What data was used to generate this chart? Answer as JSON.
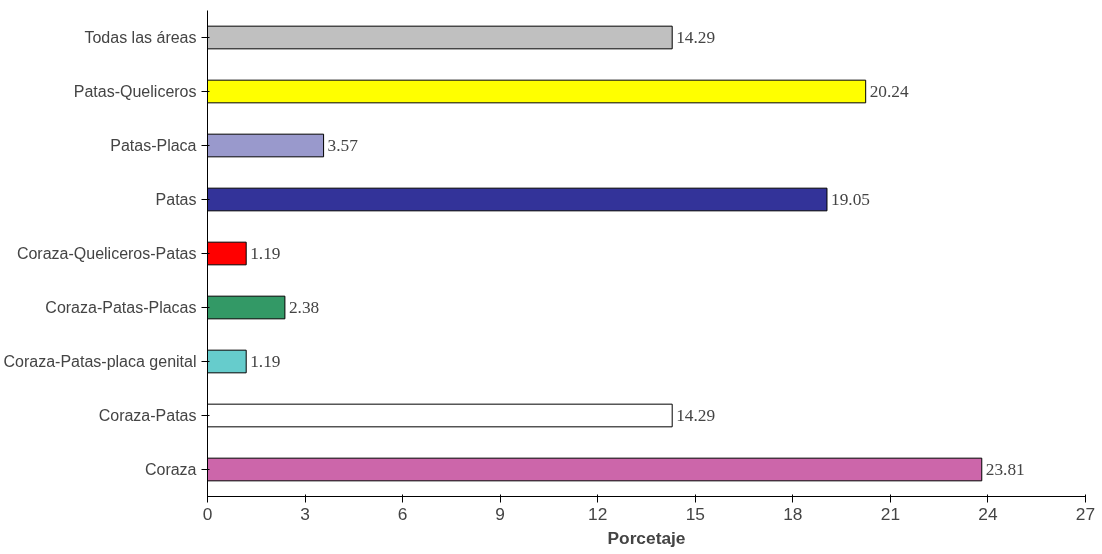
{
  "chart_data": {
    "type": "bar",
    "orientation": "horizontal",
    "xlabel": "Porcetaje",
    "categories": [
      "Todas las áreas",
      "Patas-Queliceros",
      "Patas-Placa",
      "Patas",
      "Coraza-Queliceros-Patas",
      "Coraza-Patas-Placas",
      "Coraza-Patas-placa genital",
      "Coraza-Patas",
      "Coraza"
    ],
    "values": [
      14.29,
      20.24,
      3.57,
      19.05,
      1.19,
      2.38,
      1.19,
      14.29,
      23.81
    ],
    "colors": [
      "#c0c0c0",
      "#ffff00",
      "#9999cc",
      "#333399",
      "#ff0000",
      "#339966",
      "#66cccc",
      "#ffffff",
      "#cc66aa"
    ],
    "xlim": [
      0,
      27
    ],
    "xticks": [
      0,
      3,
      6,
      9,
      12,
      15,
      18,
      21,
      24,
      27
    ],
    "grid": false,
    "data_labels": true
  }
}
